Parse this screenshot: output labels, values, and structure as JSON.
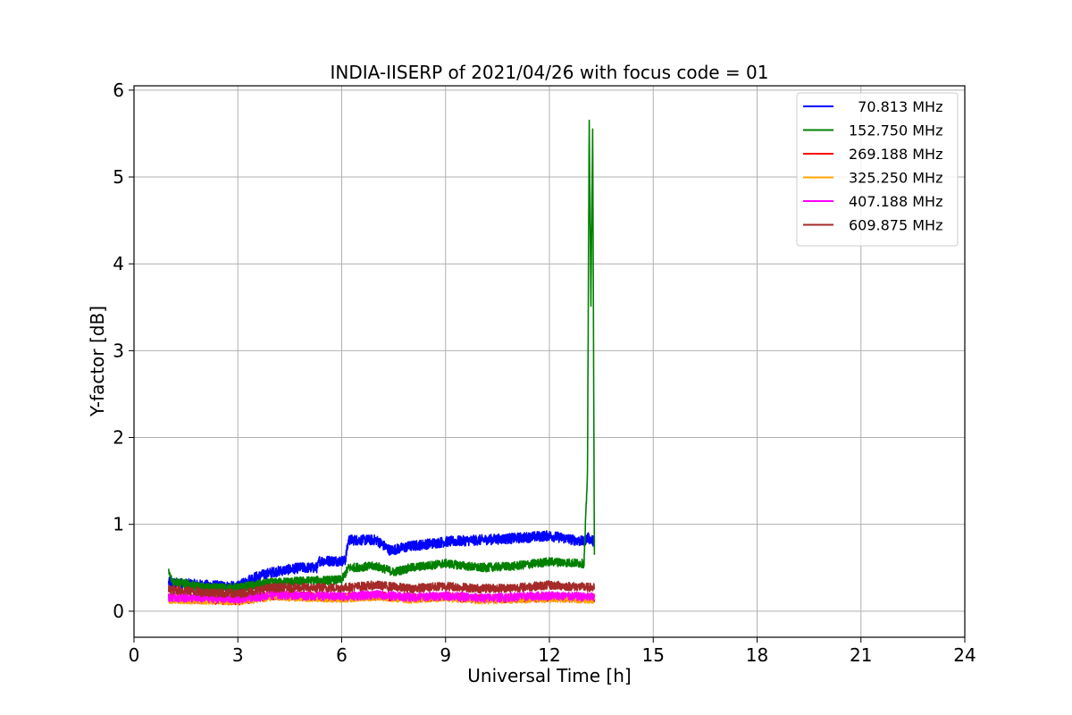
{
  "chart_data": {
    "type": "line",
    "title": "INDIA-IISERP of 2021/04/26 with focus code = 01",
    "xlabel": "Universal Time [h]",
    "ylabel": "Y-factor [dB]",
    "xlim": [
      0,
      24
    ],
    "ylim": [
      -0.3,
      6.05
    ],
    "xticks": [
      0,
      3,
      6,
      9,
      12,
      15,
      18,
      21,
      24
    ],
    "yticks": [
      0,
      1,
      2,
      3,
      4,
      5,
      6
    ],
    "grid": true,
    "legend_position": "top-right",
    "series": [
      {
        "name": "  70.813 MHz",
        "color": "#0000ff",
        "noise": 0.06,
        "points": [
          [
            1.0,
            0.33
          ],
          [
            2.0,
            0.3
          ],
          [
            3.0,
            0.28
          ],
          [
            3.4,
            0.38
          ],
          [
            4.0,
            0.45
          ],
          [
            4.8,
            0.5
          ],
          [
            5.3,
            0.5
          ],
          [
            5.35,
            0.58
          ],
          [
            6.1,
            0.58
          ],
          [
            6.2,
            0.82
          ],
          [
            7.0,
            0.82
          ],
          [
            7.4,
            0.7
          ],
          [
            8.0,
            0.75
          ],
          [
            9.0,
            0.8
          ],
          [
            10.0,
            0.82
          ],
          [
            11.0,
            0.84
          ],
          [
            12.0,
            0.87
          ],
          [
            13.0,
            0.8
          ],
          [
            13.1,
            0.85
          ],
          [
            13.3,
            0.8
          ]
        ]
      },
      {
        "name": "152.750 MHz",
        "color": "#008000",
        "noise": 0.05,
        "points": [
          [
            1.0,
            0.45
          ],
          [
            1.1,
            0.35
          ],
          [
            2.0,
            0.27
          ],
          [
            3.0,
            0.27
          ],
          [
            4.0,
            0.33
          ],
          [
            5.0,
            0.35
          ],
          [
            6.0,
            0.36
          ],
          [
            6.2,
            0.5
          ],
          [
            7.0,
            0.52
          ],
          [
            7.5,
            0.45
          ],
          [
            8.0,
            0.5
          ],
          [
            9.0,
            0.55
          ],
          [
            10.0,
            0.5
          ],
          [
            11.0,
            0.52
          ],
          [
            12.0,
            0.57
          ],
          [
            13.0,
            0.55
          ],
          [
            13.1,
            1.6
          ],
          [
            13.15,
            5.7
          ],
          [
            13.2,
            3.5
          ],
          [
            13.25,
            5.6
          ],
          [
            13.3,
            0.65
          ]
        ]
      },
      {
        "name": "269.188 MHz",
        "color": "#ff0000",
        "noise": 0.05,
        "points": [
          [
            1.0,
            0.15
          ],
          [
            3.0,
            0.12
          ],
          [
            4.0,
            0.18
          ],
          [
            6.0,
            0.16
          ],
          [
            7.0,
            0.18
          ],
          [
            8.0,
            0.15
          ],
          [
            9.0,
            0.17
          ],
          [
            10.0,
            0.14
          ],
          [
            12.0,
            0.16
          ],
          [
            13.3,
            0.15
          ]
        ]
      },
      {
        "name": "325.250 MHz",
        "color": "#ffa500",
        "noise": 0.05,
        "points": [
          [
            1.0,
            0.14
          ],
          [
            3.0,
            0.12
          ],
          [
            4.0,
            0.17
          ],
          [
            6.0,
            0.15
          ],
          [
            7.0,
            0.17
          ],
          [
            8.0,
            0.14
          ],
          [
            9.0,
            0.16
          ],
          [
            10.0,
            0.13
          ],
          [
            12.0,
            0.15
          ],
          [
            13.3,
            0.14
          ]
        ]
      },
      {
        "name": "407.188 MHz",
        "color": "#ff00ff",
        "noise": 0.05,
        "points": [
          [
            1.0,
            0.16
          ],
          [
            3.0,
            0.14
          ],
          [
            4.0,
            0.19
          ],
          [
            6.0,
            0.17
          ],
          [
            7.0,
            0.19
          ],
          [
            8.0,
            0.16
          ],
          [
            9.0,
            0.18
          ],
          [
            10.0,
            0.15
          ],
          [
            12.0,
            0.18
          ],
          [
            13.3,
            0.16
          ]
        ]
      },
      {
        "name": "609.875 MHz",
        "color": "#a52a2a",
        "noise": 0.05,
        "points": [
          [
            1.0,
            0.25
          ],
          [
            2.0,
            0.22
          ],
          [
            3.0,
            0.2
          ],
          [
            4.0,
            0.27
          ],
          [
            5.0,
            0.27
          ],
          [
            6.0,
            0.27
          ],
          [
            7.0,
            0.3
          ],
          [
            8.0,
            0.26
          ],
          [
            9.0,
            0.29
          ],
          [
            10.0,
            0.26
          ],
          [
            11.0,
            0.27
          ],
          [
            12.0,
            0.3
          ],
          [
            13.3,
            0.27
          ]
        ]
      }
    ]
  }
}
